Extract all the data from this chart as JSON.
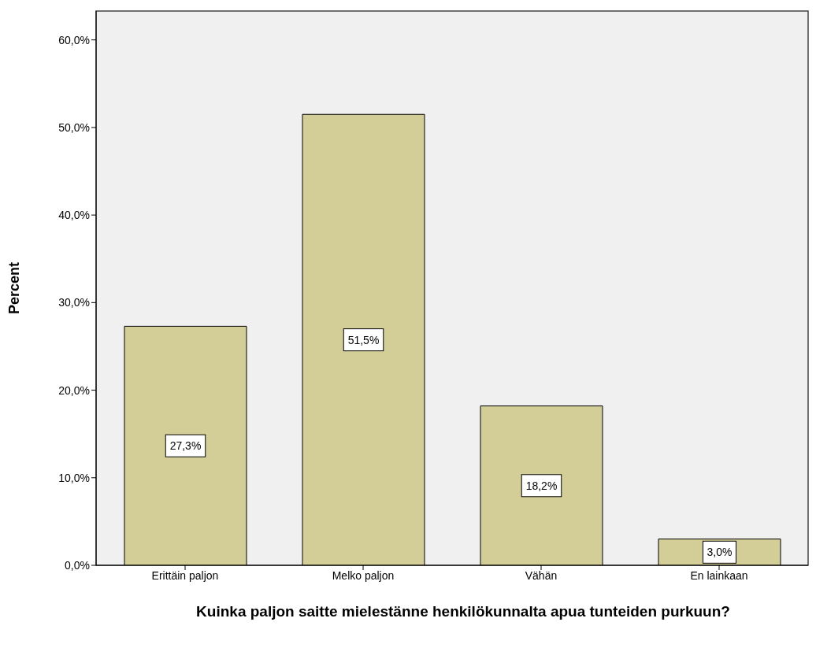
{
  "chart_data": {
    "type": "bar",
    "xlabel": "Kuinka paljon saitte mielestänne henkilökunnalta apua tunteiden purkuun?",
    "ylabel": "Percent",
    "categories": [
      "Erittäin paljon",
      "Melko paljon",
      "Vähän",
      "En lainkaan"
    ],
    "values": [
      27.3,
      51.5,
      18.2,
      3.0
    ],
    "value_labels": [
      "27,3%",
      "51,5%",
      "18,2%",
      "3,0%"
    ],
    "color": "#d3ce97",
    "ylim": [
      0,
      63.3
    ],
    "yticks": [
      {
        "value": 0,
        "label": "0,0%"
      },
      {
        "value": 10,
        "label": "10,0%"
      },
      {
        "value": 20,
        "label": "20,0%"
      },
      {
        "value": 30,
        "label": "30,0%"
      },
      {
        "value": 40,
        "label": "40,0%"
      },
      {
        "value": 50,
        "label": "50,0%"
      },
      {
        "value": 60,
        "label": "60,0%"
      }
    ],
    "grid": false
  }
}
